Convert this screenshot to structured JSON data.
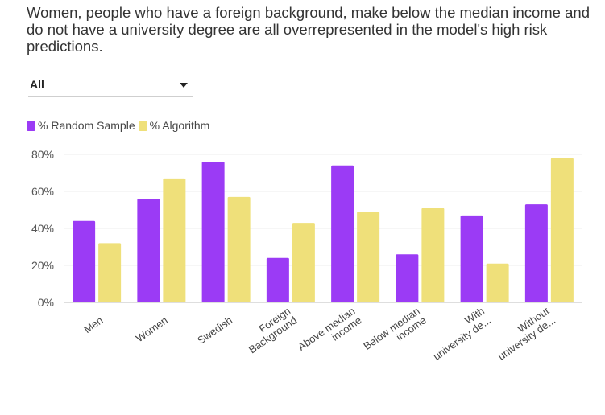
{
  "title": "Women, people who have a foreign background, make below the median income and do not have a university degree are all overrepresented in the model's high risk predictions.",
  "filter": {
    "selected": "All"
  },
  "colors": {
    "random_sample": "#9b3bf5",
    "algorithm": "#efe07a"
  },
  "chart_data": {
    "type": "bar",
    "categories": [
      "Men",
      "Women",
      "Swedish",
      "Foreign Background",
      "Above median income",
      "Below median income",
      "With university de...",
      "Without university de..."
    ],
    "category_lines": [
      [
        "Men"
      ],
      [
        "Women"
      ],
      [
        "Swedish"
      ],
      [
        "Foreign",
        "Background"
      ],
      [
        "Above median",
        "income"
      ],
      [
        "Below median",
        "income"
      ],
      [
        "With",
        "university de..."
      ],
      [
        "Without",
        "university de..."
      ]
    ],
    "series": [
      {
        "name": "% Random Sample",
        "values": [
          44,
          56,
          76,
          24,
          74,
          26,
          47,
          53
        ]
      },
      {
        "name": "% Algorithm",
        "values": [
          32,
          67,
          57,
          43,
          49,
          51,
          21,
          78
        ]
      }
    ],
    "ylim": [
      0,
      80
    ],
    "yticks": [
      "0%",
      "20%",
      "40%",
      "60%",
      "80%"
    ],
    "legend_position": "top-left",
    "grid": true
  }
}
